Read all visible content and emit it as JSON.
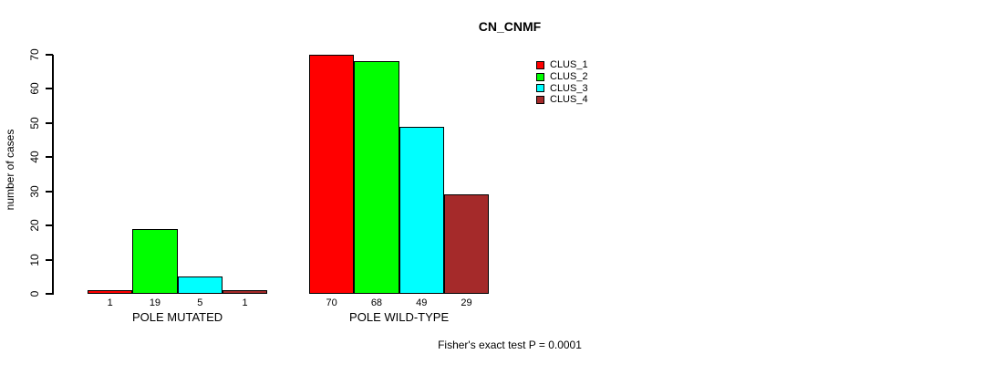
{
  "chart_data": {
    "type": "bar",
    "title": "CN_CNMF",
    "ylabel": "number of cases",
    "xlabel": "",
    "categories": [
      "POLE MUTATED",
      "POLE WILD-TYPE"
    ],
    "series": [
      {
        "name": "CLUS_1",
        "color": "#FF0000",
        "values": [
          1,
          70
        ]
      },
      {
        "name": "CLUS_2",
        "color": "#00FF00",
        "values": [
          19,
          68
        ]
      },
      {
        "name": "CLUS_3",
        "color": "#00FFFF",
        "values": [
          5,
          49
        ]
      },
      {
        "name": "CLUS_4",
        "color": "#A52A2A",
        "values": [
          1,
          29
        ]
      }
    ],
    "yticks": [
      0,
      10,
      20,
      30,
      40,
      50,
      60,
      70
    ],
    "ylim": [
      0,
      70
    ],
    "bar_value_labels": [
      [
        "1",
        "19",
        "5",
        "1"
      ],
      [
        "70",
        "68",
        "49",
        "29"
      ]
    ],
    "grid": false,
    "legend_position": "top-right",
    "legend_entries": [
      "CLUS_1",
      "CLUS_2",
      "CLUS_3",
      "CLUS_4"
    ],
    "annotation": "Fisher's exact test P = 0.0001"
  }
}
